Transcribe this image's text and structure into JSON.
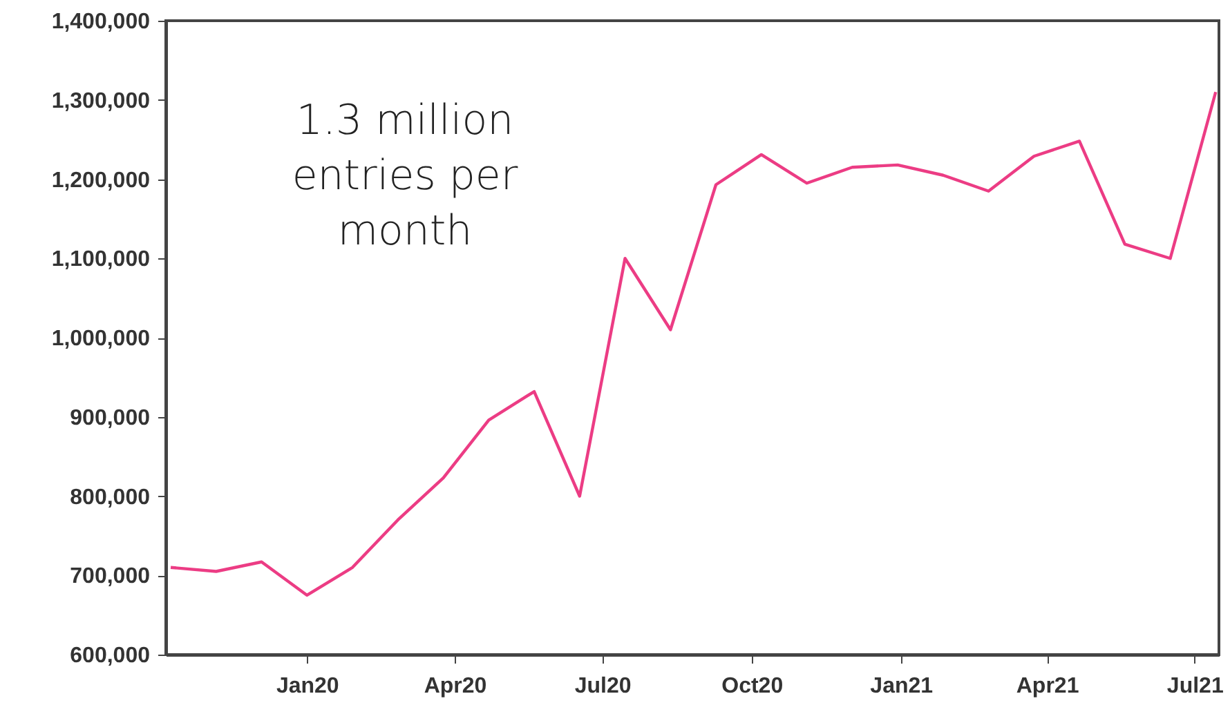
{
  "chart_data": {
    "type": "line",
    "x": [
      "2019-10-09",
      "2019-11-06",
      "2019-12-04",
      "2020-01-01",
      "2020-01-29",
      "2020-02-26",
      "2020-03-25",
      "2020-04-22",
      "2020-05-20",
      "2020-06-17",
      "2020-07-15",
      "2020-08-12",
      "2020-09-09",
      "2020-10-07",
      "2020-11-04",
      "2020-12-02",
      "2020-12-30",
      "2021-01-27",
      "2021-02-24",
      "2021-03-24",
      "2021-04-21",
      "2021-05-19",
      "2021-06-16",
      "2021-07-14"
    ],
    "series": [
      {
        "color": "#ec3c84",
        "values": [
          710000,
          705000,
          717000,
          675000,
          710000,
          770000,
          823000,
          896000,
          932000,
          800000,
          1100000,
          1010000,
          1193000,
          1231000,
          1195000,
          1215000,
          1218000,
          1205000,
          1185000,
          1229000,
          1248000,
          1118000,
          1100000,
          1310000
        ]
      }
    ],
    "xlim": [
      "2019-10-06",
      "2021-07-16"
    ],
    "xticks": [
      {
        "value": "2020-01-01",
        "label": "Jan20"
      },
      {
        "value": "2020-04-01",
        "label": "Apr20"
      },
      {
        "value": "2020-07-01",
        "label": "Jul20"
      },
      {
        "value": "2020-10-01",
        "label": "Oct20"
      },
      {
        "value": "2021-01-01",
        "label": "Jan21"
      },
      {
        "value": "2021-04-01",
        "label": "Apr21"
      },
      {
        "value": "2021-07-01",
        "label": "Jul21"
      }
    ],
    "ylim": [
      600000,
      1400000
    ],
    "yticks": [
      {
        "value": 600000,
        "label": "600,000"
      },
      {
        "value": 700000,
        "label": "700,000"
      },
      {
        "value": 800000,
        "label": "800,000"
      },
      {
        "value": 900000,
        "label": "900,000"
      },
      {
        "value": 1000000,
        "label": "1,000,000"
      },
      {
        "value": 1100000,
        "label": "1,100,000"
      },
      {
        "value": 1200000,
        "label": "1,200,000"
      },
      {
        "value": 1300000,
        "label": "1,300,000"
      },
      {
        "value": 1400000,
        "label": "1,400,000"
      }
    ],
    "annotations": [
      "1.3 million entries per month"
    ],
    "grid": false,
    "marker": "none",
    "line_style": "solid"
  }
}
